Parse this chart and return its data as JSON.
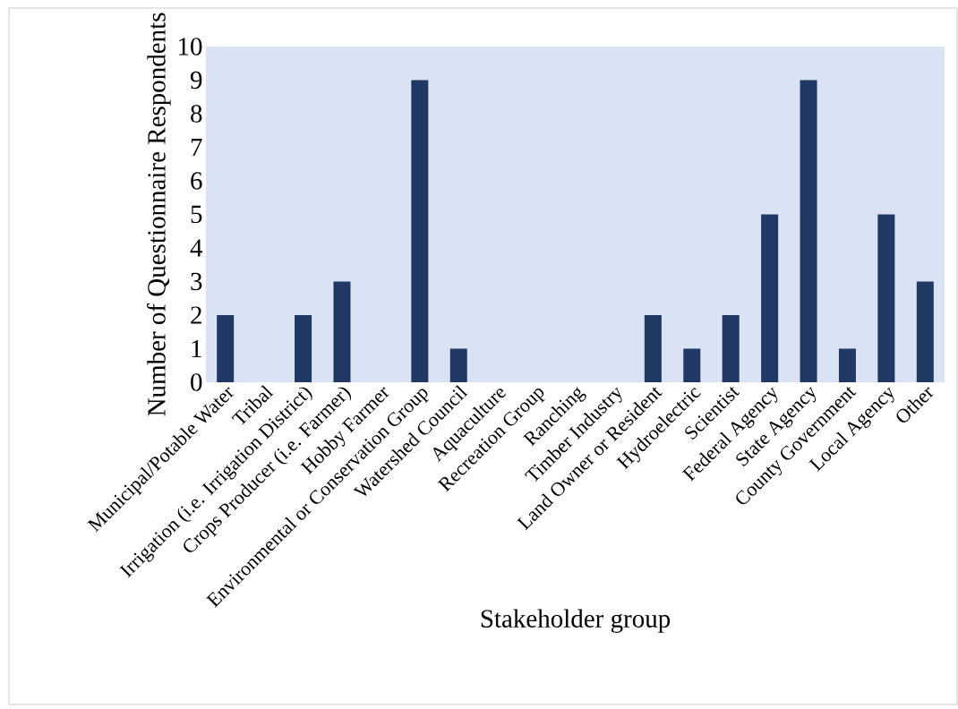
{
  "chart_data": {
    "type": "bar",
    "xlabel": "Stakeholder group",
    "ylabel": "Number of Questionnaire Respondents",
    "categories": [
      "Municipal/Potable Water",
      "Tribal",
      "Irrigation (i.e. Irrigation District)",
      "Crops Producer (i.e. Farmer)",
      "Hobby Farmer",
      "Environmental or Conservation Group",
      "Watershed Council",
      "Aquaculture",
      "Recreation Group",
      "Ranching",
      "Timber Industry",
      "Land Owner or Resident",
      "Hydroelectric",
      "Scientist",
      "Federal Agency",
      "State Agency",
      "County Government",
      "Local Agency",
      "Other"
    ],
    "values": [
      2,
      0,
      2,
      3,
      0,
      9,
      1,
      0,
      0,
      0,
      0,
      2,
      1,
      2,
      5,
      9,
      1,
      5,
      3
    ],
    "color": "#203864",
    "ylim": [
      0,
      10
    ],
    "yticks": [
      0,
      1,
      2,
      3,
      4,
      5,
      6,
      7,
      8,
      9,
      10
    ]
  }
}
